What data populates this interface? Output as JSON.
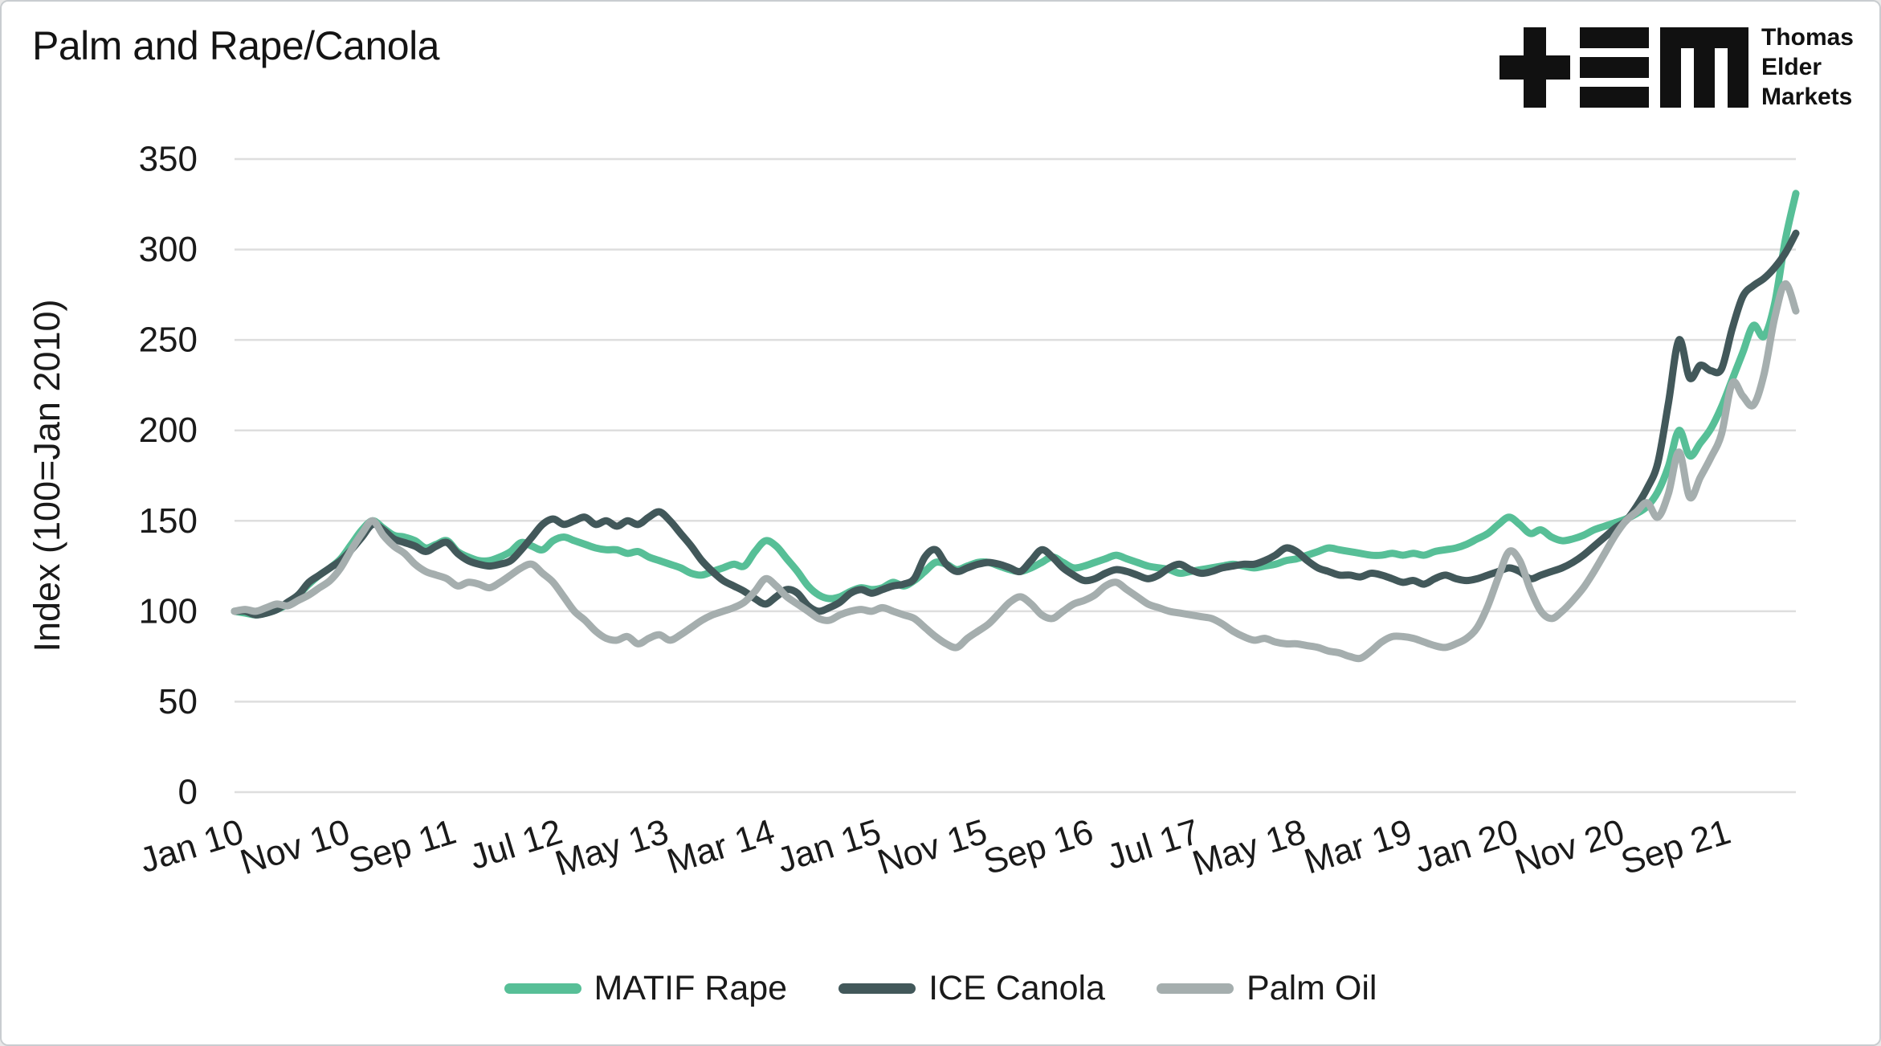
{
  "title": "Palm and Rape/Canola",
  "logo": {
    "name": "Thomas Elder Markets",
    "lines": [
      "Thomas",
      "Elder",
      "Markets"
    ]
  },
  "colors": {
    "background": "#FFFFFF",
    "border": "#C9CDD0",
    "grid": "#DEDEDE",
    "text": "#1A1A1A",
    "matif_rape": "#57BF97",
    "ice_canola": "#42585A",
    "palm_oil": "#A5AEAE"
  },
  "chart_data": {
    "type": "line",
    "title": "Palm and Rape/Canola",
    "xlabel": "",
    "ylabel": "Index (100=Jan 2010)",
    "ylim": [
      0,
      350
    ],
    "ytick_step": 50,
    "y_ticks": [
      0,
      50,
      100,
      150,
      200,
      250,
      300,
      350
    ],
    "grid": "horizontal",
    "legend_position": "bottom-center",
    "x_start": "Jan 2010",
    "x_end": "Apr 2022",
    "x_interval": "monthly",
    "x_ticks": [
      {
        "m": 0,
        "label": "Jan 10"
      },
      {
        "m": 10,
        "label": "Nov 10"
      },
      {
        "m": 20,
        "label": "Sep 11"
      },
      {
        "m": 30,
        "label": "Jul 12"
      },
      {
        "m": 40,
        "label": "May 13"
      },
      {
        "m": 50,
        "label": "Mar 14"
      },
      {
        "m": 60,
        "label": "Jan 15"
      },
      {
        "m": 70,
        "label": "Nov 15"
      },
      {
        "m": 80,
        "label": "Sep 16"
      },
      {
        "m": 90,
        "label": "Jul 17"
      },
      {
        "m": 100,
        "label": "May 18"
      },
      {
        "m": 110,
        "label": "Mar 19"
      },
      {
        "m": 120,
        "label": "Jan 20"
      },
      {
        "m": 130,
        "label": "Nov 20"
      },
      {
        "m": 140,
        "label": "Sep 21"
      }
    ],
    "series": [
      {
        "name": "MATIF Rape",
        "color": "#57BF97",
        "values": [
          100,
          99,
          98,
          99,
          101,
          104,
          109,
          115,
          120,
          124,
          129,
          137,
          145,
          150,
          146,
          142,
          141,
          139,
          135,
          137,
          139,
          133,
          130,
          128,
          128,
          130,
          133,
          138,
          136,
          134,
          139,
          141,
          139,
          137,
          135,
          134,
          134,
          132,
          133,
          130,
          128,
          126,
          124,
          121,
          120,
          122,
          124,
          126,
          125,
          133,
          139,
          136,
          129,
          122,
          114,
          109,
          107,
          108,
          111,
          113,
          112,
          113,
          116,
          114,
          117,
          122,
          127,
          126,
          123,
          125,
          127,
          127,
          125,
          123,
          122,
          124,
          127,
          130,
          127,
          124,
          125,
          127,
          129,
          131,
          129,
          127,
          125,
          124,
          123,
          121,
          122,
          123,
          124,
          125,
          126,
          125,
          124,
          125,
          126,
          128,
          129,
          131,
          133,
          135,
          134,
          133,
          132,
          131,
          131,
          132,
          131,
          132,
          131,
          133,
          134,
          135,
          137,
          140,
          143,
          148,
          152,
          148,
          143,
          145,
          141,
          139,
          140,
          142,
          145,
          147,
          149,
          151,
          154,
          158,
          166,
          180,
          200,
          186,
          193,
          201,
          213,
          228,
          243,
          258,
          252,
          270,
          305,
          331
        ]
      },
      {
        "name": "ICE Canola",
        "color": "#42585A",
        "values": [
          100,
          100,
          98,
          99,
          101,
          105,
          109,
          116,
          120,
          124,
          128,
          134,
          141,
          148,
          145,
          140,
          138,
          136,
          133,
          136,
          138,
          132,
          128,
          126,
          125,
          126,
          128,
          134,
          141,
          148,
          151,
          148,
          150,
          152,
          148,
          150,
          147,
          150,
          148,
          152,
          155,
          150,
          143,
          136,
          128,
          122,
          117,
          114,
          111,
          107,
          104,
          108,
          112,
          110,
          103,
          100,
          102,
          105,
          110,
          112,
          110,
          112,
          114,
          115,
          118,
          130,
          134,
          126,
          122,
          124,
          126,
          127,
          126,
          124,
          122,
          128,
          134,
          130,
          124,
          120,
          117,
          118,
          121,
          123,
          122,
          120,
          118,
          120,
          124,
          126,
          123,
          121,
          122,
          124,
          125,
          126,
          126,
          128,
          131,
          135,
          133,
          128,
          124,
          122,
          120,
          120,
          119,
          121,
          120,
          118,
          116,
          117,
          115,
          118,
          120,
          118,
          117,
          118,
          120,
          122,
          124,
          122,
          118,
          120,
          122,
          124,
          127,
          131,
          136,
          141,
          146,
          150,
          158,
          168,
          182,
          215,
          250,
          229,
          236,
          233,
          234,
          256,
          274,
          280,
          284,
          290,
          298,
          309
        ]
      },
      {
        "name": "Palm Oil",
        "color": "#A5AEAE",
        "values": [
          100,
          101,
          100,
          102,
          104,
          103,
          106,
          109,
          113,
          117,
          124,
          134,
          143,
          150,
          142,
          136,
          132,
          126,
          122,
          120,
          118,
          114,
          116,
          115,
          113,
          116,
          120,
          124,
          126,
          121,
          116,
          108,
          100,
          95,
          89,
          85,
          84,
          86,
          82,
          85,
          87,
          84,
          87,
          91,
          95,
          98,
          100,
          102,
          105,
          111,
          118,
          114,
          108,
          104,
          100,
          96,
          95,
          98,
          100,
          101,
          100,
          102,
          100,
          98,
          96,
          91,
          86,
          82,
          80,
          85,
          89,
          93,
          99,
          105,
          108,
          104,
          98,
          96,
          100,
          104,
          106,
          109,
          114,
          116,
          112,
          108,
          104,
          102,
          100,
          99,
          98,
          97,
          96,
          93,
          89,
          86,
          84,
          85,
          83,
          82,
          82,
          81,
          80,
          78,
          77,
          75,
          74,
          78,
          83,
          86,
          86,
          85,
          83,
          81,
          80,
          82,
          85,
          91,
          103,
          119,
          133,
          128,
          112,
          100,
          96,
          100,
          106,
          113,
          122,
          132,
          142,
          150,
          155,
          160,
          152,
          165,
          188,
          163,
          174,
          185,
          198,
          226,
          219,
          214,
          231,
          262,
          281,
          266
        ]
      }
    ]
  }
}
